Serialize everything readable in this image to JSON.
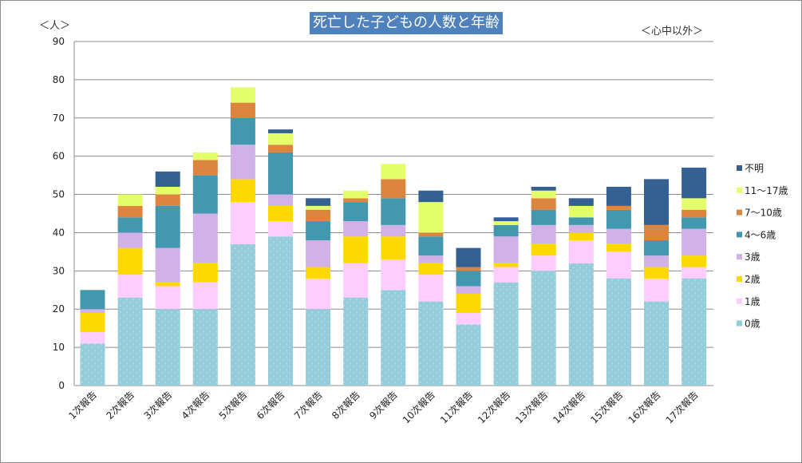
{
  "chart_data": {
    "type": "bar",
    "stacked": true,
    "title": "死亡した子どもの人数と年齢",
    "ylabel": "＜人＞",
    "annotation": "＜心中以外＞",
    "ylim": [
      0,
      90
    ],
    "yticks": [
      0,
      10,
      20,
      30,
      40,
      50,
      60,
      70,
      80,
      90
    ],
    "grid": true,
    "legend_position": "right",
    "categories": [
      "1次報告",
      "2次報告",
      "3次報告",
      "4次報告",
      "5次報告",
      "6次報告",
      "7次報告",
      "8次報告",
      "9次報告",
      "10次報告",
      "11次報告",
      "12次報告",
      "13次報告",
      "14次報告",
      "15次報告",
      "16次報告",
      "17次報告"
    ],
    "series": [
      {
        "name": "0歳",
        "color": "#93cddd",
        "values": [
          11,
          23,
          20,
          20,
          37,
          39,
          20,
          23,
          25,
          22,
          16,
          27,
          30,
          32,
          28,
          22,
          28
        ]
      },
      {
        "name": "1歳",
        "color": "#fccdfe",
        "values": [
          3,
          6,
          6,
          7,
          11,
          4,
          8,
          9,
          8,
          7,
          3,
          4,
          4,
          6,
          7,
          6,
          3
        ]
      },
      {
        "name": "2歳",
        "color": "#fcd900",
        "values": [
          5,
          7,
          1,
          5,
          6,
          4,
          3,
          7,
          6,
          3,
          5,
          1,
          3,
          2,
          2,
          3,
          3
        ]
      },
      {
        "name": "3歳",
        "color": "#d1b2e8",
        "values": [
          1,
          4,
          9,
          13,
          9,
          3,
          7,
          4,
          3,
          2,
          2,
          7,
          5,
          2,
          4,
          3,
          7
        ]
      },
      {
        "name": "4～6歳",
        "color": "#4398b0",
        "values": [
          5,
          4,
          11,
          10,
          7,
          11,
          5,
          5,
          7,
          5,
          4,
          3,
          4,
          2,
          5,
          4,
          3
        ]
      },
      {
        "name": "7～10歳",
        "color": "#dd843e",
        "values": [
          0,
          3,
          3,
          4,
          4,
          2,
          3,
          1,
          5,
          1,
          1,
          0,
          3,
          0,
          1,
          4,
          2
        ]
      },
      {
        "name": "11～17歳",
        "color": "#e5ff6a",
        "values": [
          0,
          3,
          2,
          2,
          4,
          3,
          1,
          2,
          4,
          8,
          0,
          1,
          2,
          3,
          0,
          0,
          3
        ]
      },
      {
        "name": "不明",
        "color": "#356192",
        "values": [
          0,
          0,
          4,
          0,
          0,
          1,
          2,
          0,
          0,
          3,
          5,
          1,
          1,
          2,
          5,
          12,
          8
        ]
      }
    ]
  }
}
